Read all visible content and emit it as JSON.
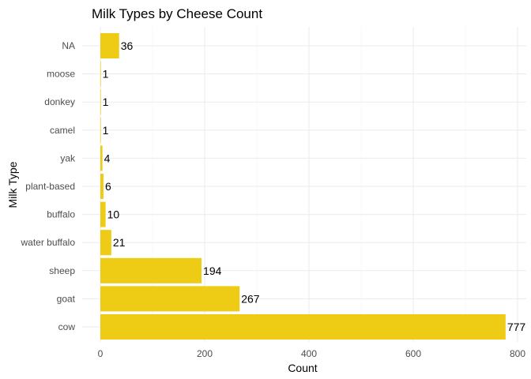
{
  "chart_data": {
    "type": "bar",
    "orientation": "horizontal",
    "title": "Milk Types by Cheese Count",
    "xlabel": "Count",
    "ylabel": "Milk Type",
    "categories": [
      "cow",
      "goat",
      "sheep",
      "water buffalo",
      "buffalo",
      "plant-based",
      "yak",
      "camel",
      "donkey",
      "moose",
      "NA"
    ],
    "values": [
      777,
      267,
      194,
      21,
      10,
      6,
      4,
      1,
      1,
      1,
      36
    ],
    "xlim": [
      0,
      800
    ],
    "xticks": [
      0,
      200,
      400,
      600,
      800
    ],
    "bar_color": "#EECC16",
    "grid": true,
    "show_data_labels": true
  }
}
